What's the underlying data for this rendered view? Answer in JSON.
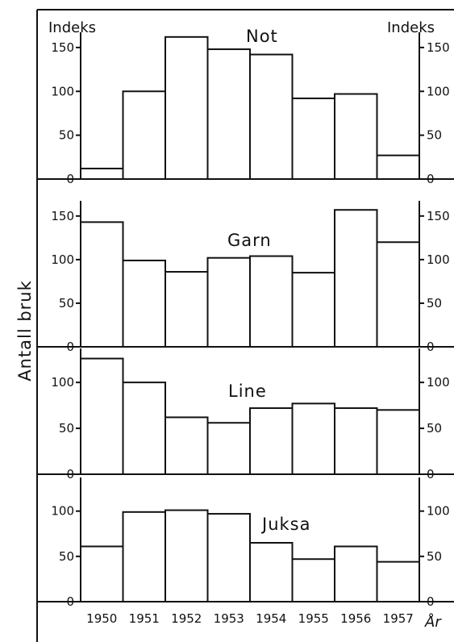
{
  "header": {
    "left_label": "Indeks",
    "right_label": "Indeks"
  },
  "ylabel": "Antall bruk",
  "xlabel": "År",
  "chart_data": [
    {
      "type": "bar",
      "title": "Not",
      "categories": [
        "1950",
        "1951",
        "1952",
        "1953",
        "1954",
        "1955",
        "1956",
        "1957"
      ],
      "values": [
        12,
        100,
        162,
        148,
        142,
        92,
        97,
        27
      ],
      "ylim": [
        0,
        160
      ],
      "yticks": [
        0,
        50,
        100,
        150
      ]
    },
    {
      "type": "bar",
      "title": "Garn",
      "categories": [
        "1950",
        "1951",
        "1952",
        "1953",
        "1954",
        "1955",
        "1956",
        "1957"
      ],
      "values": [
        143,
        99,
        86,
        102,
        104,
        85,
        157,
        120
      ],
      "ylim": [
        0,
        160
      ],
      "yticks": [
        0,
        50,
        100,
        150
      ]
    },
    {
      "type": "bar",
      "title": "Line",
      "categories": [
        "1950",
        "1951",
        "1952",
        "1953",
        "1954",
        "1955",
        "1956",
        "1957"
      ],
      "values": [
        126,
        100,
        62,
        56,
        72,
        77,
        72,
        70
      ],
      "ylim": [
        0,
        130
      ],
      "yticks": [
        0,
        50,
        100
      ]
    },
    {
      "type": "bar",
      "title": "Juksa",
      "categories": [
        "1950",
        "1951",
        "1952",
        "1953",
        "1954",
        "1955",
        "1956",
        "1957"
      ],
      "values": [
        61,
        99,
        101,
        97,
        65,
        47,
        61,
        44
      ],
      "ylim": [
        0,
        130
      ],
      "yticks": [
        0,
        50,
        100
      ]
    }
  ]
}
